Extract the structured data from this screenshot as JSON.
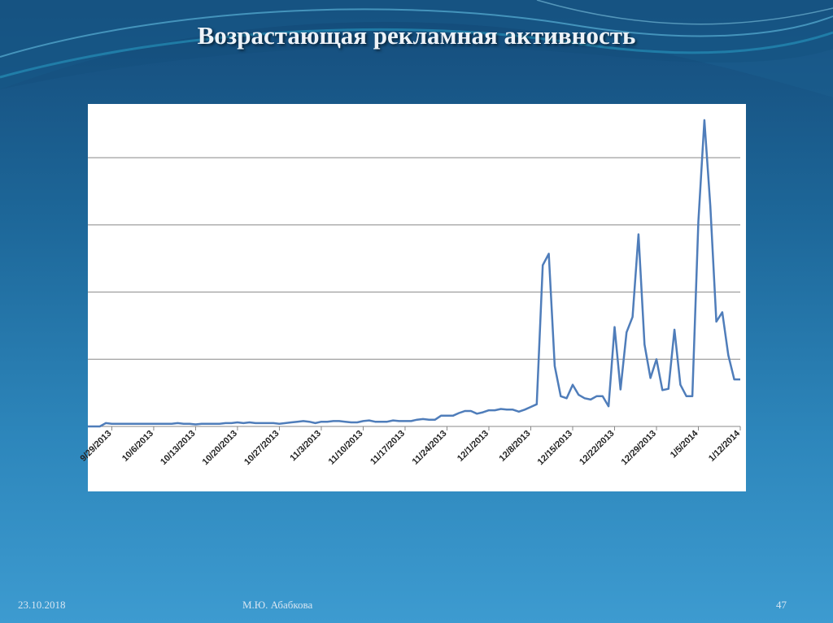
{
  "slide": {
    "title": "Возрастающая рекламная активность",
    "footer_date": "23.10.2018",
    "footer_author": "М.Ю. Абабкова",
    "page_number": "47"
  },
  "colors": {
    "background_top": "#154b7a",
    "background_bottom": "#3d9bd0",
    "line": "#4f7dba",
    "gridline": "#888888",
    "title_text": "#eef3f8"
  },
  "chart_data": {
    "type": "line",
    "title": "",
    "xlabel": "",
    "ylabel": "",
    "grid": true,
    "legend": "none",
    "y_axis_labels_visible": false,
    "ylim": [
      0,
      4.8
    ],
    "x_tick_labels": [
      "9/29/2013",
      "10/6/2013",
      "10/13/2013",
      "10/20/2013",
      "10/27/2013",
      "11/3/2013",
      "11/10/2013",
      "11/17/2013",
      "11/24/2013",
      "12/1/2013",
      "12/8/2013",
      "12/15/2013",
      "12/22/2013",
      "12/29/2013",
      "1/5/2014",
      "1/12/2014"
    ],
    "x_range": [
      "2013-09-25",
      "2014-01-12"
    ],
    "series": [
      {
        "x": [
          "2013-09-25",
          "2013-09-26",
          "2013-09-27",
          "2013-09-28",
          "2013-09-29",
          "2013-09-30",
          "2013-10-01",
          "2013-10-02",
          "2013-10-03",
          "2013-10-04",
          "2013-10-05",
          "2013-10-06",
          "2013-10-07",
          "2013-10-08",
          "2013-10-09",
          "2013-10-10",
          "2013-10-11",
          "2013-10-12",
          "2013-10-13",
          "2013-10-14",
          "2013-10-15",
          "2013-10-16",
          "2013-10-17",
          "2013-10-18",
          "2013-10-19",
          "2013-10-20",
          "2013-10-21",
          "2013-10-22",
          "2013-10-23",
          "2013-10-24",
          "2013-10-25",
          "2013-10-26",
          "2013-10-27",
          "2013-10-28",
          "2013-10-29",
          "2013-10-30",
          "2013-10-31",
          "2013-11-01",
          "2013-11-02",
          "2013-11-03",
          "2013-11-04",
          "2013-11-05",
          "2013-11-06",
          "2013-11-07",
          "2013-11-08",
          "2013-11-09",
          "2013-11-10",
          "2013-11-11",
          "2013-11-12",
          "2013-11-13",
          "2013-11-14",
          "2013-11-15",
          "2013-11-16",
          "2013-11-17",
          "2013-11-18",
          "2013-11-19",
          "2013-11-20",
          "2013-11-21",
          "2013-11-22",
          "2013-11-23",
          "2013-11-24",
          "2013-11-25",
          "2013-11-26",
          "2013-11-27",
          "2013-11-28",
          "2013-11-29",
          "2013-11-30",
          "2013-12-01",
          "2013-12-02",
          "2013-12-03",
          "2013-12-04",
          "2013-12-05",
          "2013-12-06",
          "2013-12-07",
          "2013-12-08",
          "2013-12-09",
          "2013-12-10",
          "2013-12-11",
          "2013-12-12",
          "2013-12-13",
          "2013-12-14",
          "2013-12-15",
          "2013-12-16",
          "2013-12-17",
          "2013-12-18",
          "2013-12-19",
          "2013-12-20",
          "2013-12-21",
          "2013-12-22",
          "2013-12-23",
          "2013-12-24",
          "2013-12-25",
          "2013-12-26",
          "2013-12-27",
          "2013-12-28",
          "2013-12-29",
          "2013-12-30",
          "2013-12-31",
          "2014-01-01",
          "2014-01-02",
          "2014-01-03",
          "2014-01-04",
          "2014-01-05",
          "2014-01-06",
          "2014-01-07",
          "2014-01-08",
          "2014-01-09",
          "2014-01-10",
          "2014-01-11",
          "2014-01-12"
        ],
        "values": [
          0,
          0,
          0,
          0.05,
          0.04,
          0.04,
          0.04,
          0.04,
          0.04,
          0.04,
          0.04,
          0.04,
          0.04,
          0.04,
          0.04,
          0.05,
          0.04,
          0.04,
          0.03,
          0.04,
          0.04,
          0.04,
          0.04,
          0.05,
          0.05,
          0.06,
          0.05,
          0.06,
          0.05,
          0.05,
          0.05,
          0.05,
          0.04,
          0.05,
          0.06,
          0.07,
          0.08,
          0.07,
          0.05,
          0.07,
          0.07,
          0.08,
          0.08,
          0.07,
          0.06,
          0.06,
          0.08,
          0.09,
          0.07,
          0.07,
          0.07,
          0.09,
          0.08,
          0.08,
          0.08,
          0.1,
          0.11,
          0.1,
          0.1,
          0.16,
          0.16,
          0.16,
          0.2,
          0.23,
          0.23,
          0.19,
          0.21,
          0.24,
          0.24,
          0.26,
          0.25,
          0.25,
          0.22,
          0.25,
          0.29,
          0.33,
          2.4,
          2.57,
          0.9,
          0.45,
          0.42,
          0.62,
          0.47,
          0.42,
          0.4,
          0.45,
          0.45,
          0.3,
          1.48,
          0.55,
          1.4,
          1.63,
          2.86,
          1.22,
          0.72,
          1.0,
          0.54,
          0.56,
          1.44,
          0.62,
          0.45,
          0.45,
          3.05,
          4.56,
          3.28,
          1.56,
          1.7,
          1.06,
          0.7,
          0.7
        ]
      }
    ]
  }
}
